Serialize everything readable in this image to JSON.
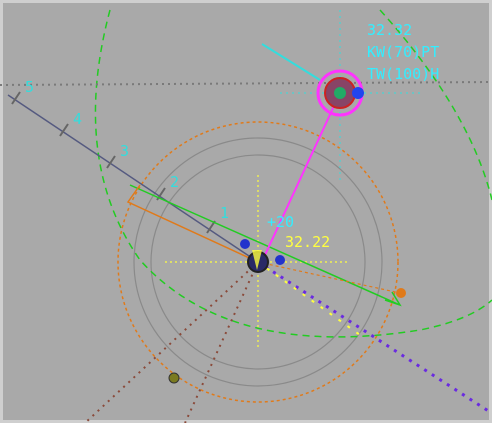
{
  "target": {
    "range": "32.32",
    "line1": "KW(70)PT",
    "line2": "TW(100)H"
  },
  "ownship": {
    "range": "32.22",
    "offset": "+20"
  },
  "range_marks": [
    "1",
    "2",
    "3",
    "4",
    "5"
  ]
}
